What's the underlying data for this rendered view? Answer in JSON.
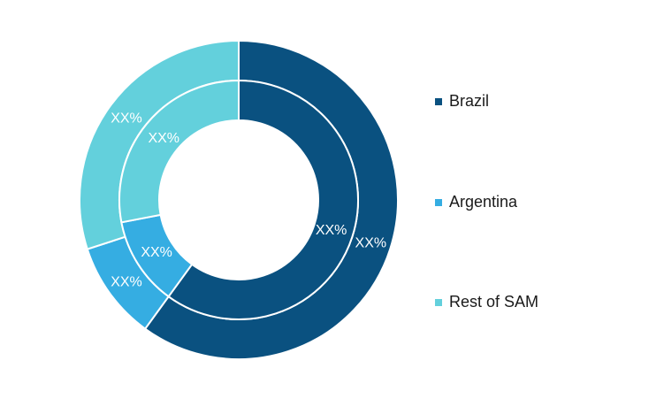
{
  "chart_data": {
    "type": "pie",
    "variant": "nested-donut",
    "categories": [
      "Brazil",
      "Argentina",
      "Rest of SAM"
    ],
    "colors": [
      "#0a5180",
      "#35ade2",
      "#63d0dc"
    ],
    "series": [
      {
        "values": [
          60,
          10,
          30
        ],
        "labels": [
          "XX%",
          "XX%",
          "XX%"
        ]
      },
      {
        "values": [
          60,
          12,
          28
        ],
        "labels": [
          "XX%",
          "XX%",
          "XX%"
        ]
      }
    ],
    "legend": "right"
  }
}
